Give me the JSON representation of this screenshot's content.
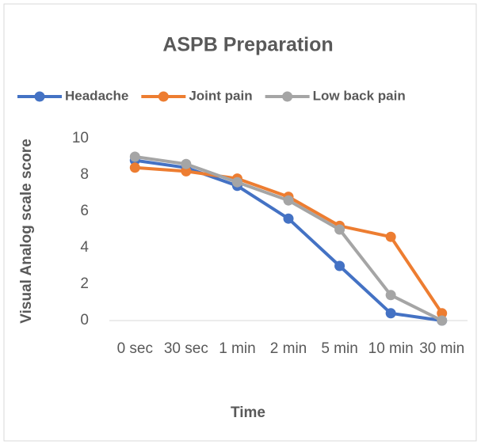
{
  "chart_data": {
    "type": "line",
    "title": "ASPB Preparation",
    "x_label": "Time",
    "y_label": "Visual Analog scale score",
    "categories": [
      "0 sec",
      "30 sec",
      "1 min",
      "2 min",
      "5 min",
      "10 min",
      "30 min"
    ],
    "series": [
      {
        "name": "Headache",
        "color": "#4472c4",
        "values": [
          8.8,
          8.4,
          7.4,
          5.6,
          3.0,
          0.4,
          0
        ]
      },
      {
        "name": "Joint pain",
        "color": "#ed7d31",
        "values": [
          8.4,
          8.2,
          7.8,
          6.8,
          5.2,
          4.6,
          0.4
        ]
      },
      {
        "name": "Low back pain",
        "color": "#a5a5a5",
        "values": [
          9.0,
          8.6,
          7.6,
          6.6,
          5.0,
          1.4,
          0
        ]
      }
    ],
    "ylim": [
      0,
      10
    ],
    "yticks": [
      0,
      2,
      4,
      6,
      8,
      10
    ],
    "grid": false,
    "legend": "top"
  }
}
